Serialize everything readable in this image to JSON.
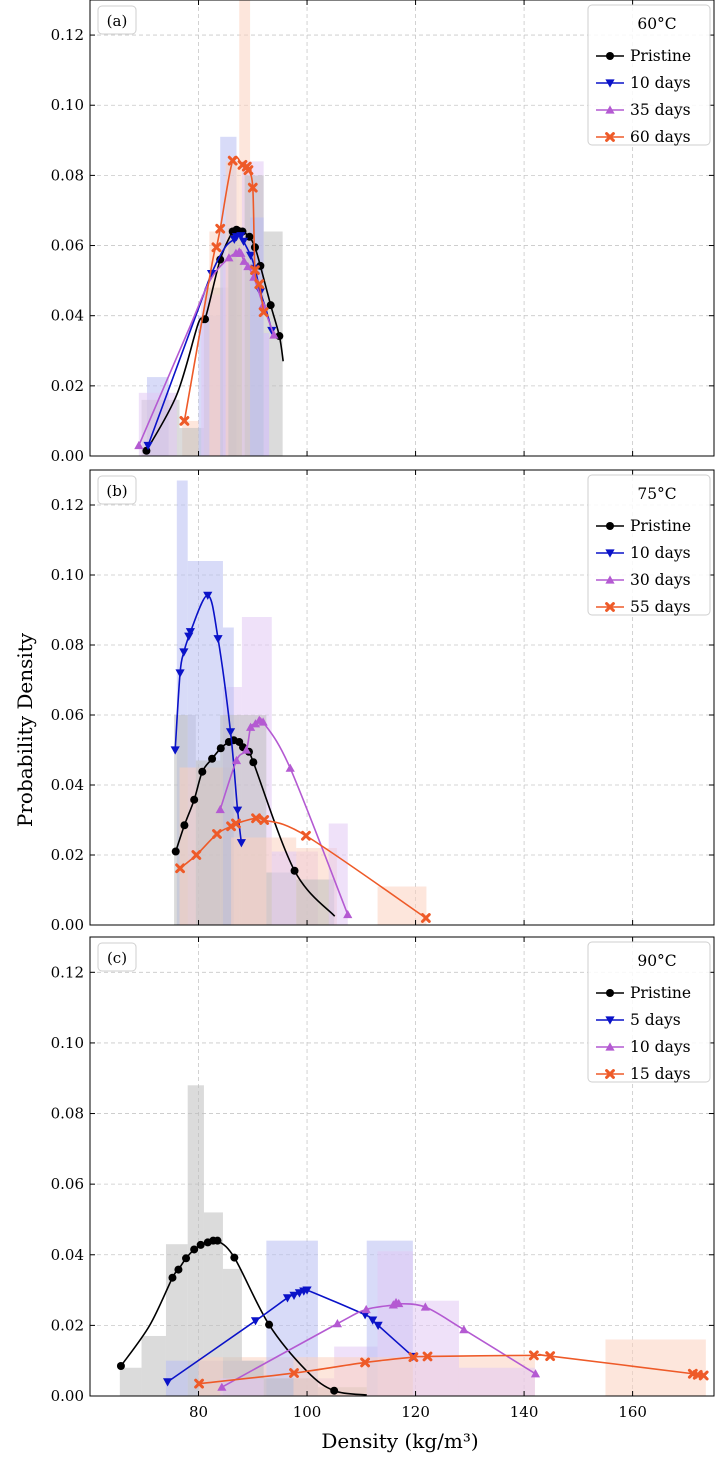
{
  "figure": {
    "xlabel": "Density (kg/m³)",
    "ylabel": "Probability Density"
  },
  "colors": {
    "Pristine": "#000000",
    "10 days": "#0a12c8",
    "5 days": "#0a12c8",
    "30 days": "#b45ad2",
    "35 days": "#b45ad2",
    "10 days (90°C)": "#b45ad2",
    "60 days": "#ee5a28",
    "55 days": "#ee5a28",
    "15 days": "#ee5a28",
    "hist_pristine": "#bdbdbd",
    "hist_blue": "#b8bef2",
    "hist_purple": "#e2c8f4",
    "hist_orange": "#fbd2c0",
    "grid": "#c8c8c8"
  },
  "chart_data": [
    {
      "type": "line",
      "panel_label": "(a)",
      "legend_title": "60°C",
      "legend_position": "top-right",
      "grid": true,
      "xlim": [
        60,
        175
      ],
      "ylim": [
        0,
        0.13
      ],
      "xticks": [
        80,
        100,
        120,
        140,
        160
      ],
      "yticks": [
        0.0,
        0.02,
        0.04,
        0.06,
        0.08,
        0.1,
        0.12
      ],
      "show_xtick_labels": false,
      "series": [
        {
          "name": "Pristine",
          "marker": "circle",
          "x": [
            70.4,
            76.0,
            80.0,
            81.2,
            84.0,
            86.3,
            87.0,
            87.6,
            88.1,
            89.4,
            90.4,
            91.4,
            93.3,
            94.9,
            95.6
          ],
          "y": [
            0.0015,
            0.0175,
            0.038,
            0.039,
            0.056,
            0.064,
            0.0645,
            0.065,
            0.064,
            0.0625,
            0.0595,
            0.0542,
            0.043,
            0.0342,
            0.027
          ],
          "marker_idx": [
            0,
            3,
            4,
            5,
            6,
            8,
            9,
            10,
            11,
            12,
            13
          ]
        },
        {
          "name": "10 days",
          "marker": "triangle-down",
          "x": [
            70.7,
            79.5,
            82.4,
            84.9,
            86.6,
            87.0,
            87.8,
            88.3,
            89.6,
            90.4,
            91.4,
            92.4,
            93.5
          ],
          "y": [
            0.003,
            0.04,
            0.052,
            0.0595,
            0.0618,
            0.0625,
            0.0628,
            0.0612,
            0.0572,
            0.0535,
            0.0468,
            0.042,
            0.0358
          ],
          "marker_idx": [
            0,
            2,
            4,
            5,
            6,
            7,
            8,
            9,
            10,
            12
          ]
        },
        {
          "name": "35 days",
          "marker": "triangle-up",
          "x": [
            69.0,
            77.9,
            82.1,
            85.6,
            86.9,
            87.5,
            87.8,
            88.4,
            89.1,
            90.2,
            91.9,
            93.9
          ],
          "y": [
            0.003,
            0.035,
            0.05,
            0.0565,
            0.0578,
            0.0582,
            0.0578,
            0.0555,
            0.054,
            0.051,
            0.043,
            0.0345
          ],
          "marker_idx": [
            0,
            3,
            4,
            5,
            6,
            7,
            8,
            9,
            10,
            11
          ]
        },
        {
          "name": "60 days",
          "marker": "x",
          "x": [
            77.4,
            82.4,
            83.3,
            84.0,
            86.3,
            88.1,
            88.9,
            89.2,
            90.0,
            90.4,
            91.2,
            92.0
          ],
          "y": [
            0.01,
            0.054,
            0.0595,
            0.0648,
            0.0842,
            0.083,
            0.0825,
            0.0815,
            0.0765,
            0.053,
            0.049,
            0.041
          ],
          "marker_idx": [
            0,
            2,
            3,
            4,
            5,
            6,
            7,
            8,
            9,
            10,
            11
          ]
        }
      ]
    },
    {
      "type": "line",
      "panel_label": "(b)",
      "legend_title": "75°C",
      "legend_position": "top-right",
      "grid": true,
      "xlim": [
        60,
        175
      ],
      "ylim": [
        0,
        0.13
      ],
      "xticks": [
        80,
        100,
        120,
        140,
        160
      ],
      "yticks": [
        0.0,
        0.02,
        0.04,
        0.06,
        0.08,
        0.1,
        0.12
      ],
      "show_xtick_labels": false,
      "series": [
        {
          "name": "Pristine",
          "marker": "circle",
          "x": [
            75.8,
            77.4,
            79.2,
            80.7,
            82.5,
            84.1,
            85.6,
            86.5,
            87.5,
            88.2,
            89.3,
            90.1,
            97.7,
            105.1
          ],
          "y": [
            0.021,
            0.0285,
            0.0358,
            0.0438,
            0.0475,
            0.0505,
            0.0523,
            0.0528,
            0.0523,
            0.0508,
            0.0495,
            0.0465,
            0.0155,
            0.0025
          ],
          "marker_idx": [
            0,
            1,
            2,
            3,
            4,
            5,
            6,
            7,
            8,
            9,
            10,
            11,
            12
          ]
        },
        {
          "name": "10 days",
          "marker": "triangle-down",
          "x": [
            75.7,
            76.6,
            77.3,
            78.2,
            78.5,
            81.7,
            83.6,
            85.9,
            87.2,
            87.9
          ],
          "y": [
            0.05,
            0.072,
            0.078,
            0.0825,
            0.0838,
            0.0942,
            0.0818,
            0.0552,
            0.0328,
            0.0235
          ],
          "marker_idx": [
            0,
            1,
            2,
            3,
            4,
            5,
            6,
            7,
            8,
            9
          ]
        },
        {
          "name": "30 days",
          "marker": "triangle-up",
          "x": [
            84.0,
            87.0,
            88.8,
            89.6,
            90.5,
            91.2,
            91.9,
            96.9,
            107.5
          ],
          "y": [
            0.033,
            0.047,
            0.05,
            0.0565,
            0.0575,
            0.0585,
            0.058,
            0.0448,
            0.003
          ],
          "marker_idx": [
            0,
            1,
            2,
            3,
            4,
            5,
            6,
            7,
            8
          ]
        },
        {
          "name": "55 days",
          "marker": "x",
          "x": [
            76.6,
            79.6,
            83.4,
            86.0,
            86.9,
            90.6,
            92.1,
            99.8,
            121.9
          ],
          "y": [
            0.0162,
            0.02,
            0.026,
            0.0282,
            0.029,
            0.0305,
            0.03,
            0.0255,
            0.002
          ],
          "marker_idx": [
            0,
            1,
            2,
            3,
            4,
            5,
            6,
            7,
            8
          ]
        }
      ]
    },
    {
      "type": "line",
      "panel_label": "(c)",
      "legend_title": "90°C",
      "legend_position": "top-right",
      "grid": true,
      "xlim": [
        60,
        175
      ],
      "ylim": [
        0,
        0.13
      ],
      "xticks": [
        80,
        100,
        120,
        140,
        160
      ],
      "yticks": [
        0.0,
        0.02,
        0.04,
        0.06,
        0.08,
        0.1,
        0.12
      ],
      "show_xtick_labels": true,
      "series": [
        {
          "name": "Pristine",
          "marker": "circle",
          "x": [
            65.7,
            71.0,
            75.2,
            76.3,
            77.7,
            79.2,
            80.4,
            81.7,
            82.7,
            83.5,
            86.6,
            93.0,
            100.0,
            105.0,
            111.0
          ],
          "y": [
            0.0085,
            0.02,
            0.0335,
            0.0358,
            0.039,
            0.0415,
            0.0428,
            0.0435,
            0.044,
            0.044,
            0.0392,
            0.0202,
            0.007,
            0.0015,
            0.0003
          ],
          "marker_idx": [
            0,
            2,
            3,
            4,
            5,
            6,
            7,
            8,
            9,
            10,
            11,
            13
          ]
        },
        {
          "name": "5 days",
          "marker": "triangle-down",
          "x": [
            74.3,
            90.5,
            96.4,
            97.6,
            98.6,
            99.4,
            100.0,
            110.7,
            112.1,
            113.1,
            119.5
          ],
          "y": [
            0.004,
            0.0213,
            0.0278,
            0.0285,
            0.0292,
            0.0297,
            0.03,
            0.023,
            0.0215,
            0.02,
            0.0112
          ],
          "marker_idx": [
            0,
            1,
            2,
            3,
            4,
            5,
            6,
            7,
            8,
            9,
            10
          ]
        },
        {
          "name": "10 days",
          "marker": "triangle-up",
          "x": [
            84.3,
            105.6,
            110.9,
            115.9,
            116.4,
            116.9,
            121.8,
            128.9,
            142.1
          ],
          "y": [
            0.0025,
            0.0205,
            0.0245,
            0.0258,
            0.0265,
            0.0262,
            0.0252,
            0.0188,
            0.0063
          ],
          "marker_idx": [
            0,
            1,
            2,
            3,
            4,
            5,
            6,
            7,
            8
          ]
        },
        {
          "name": "15 days",
          "marker": "x",
          "x": [
            80.1,
            97.6,
            110.7,
            119.6,
            122.2,
            141.8,
            144.8,
            171.1,
            172.0,
            173.1
          ],
          "y": [
            0.0035,
            0.0065,
            0.0095,
            0.011,
            0.0112,
            0.0115,
            0.0113,
            0.0063,
            0.006,
            0.0058
          ],
          "marker_idx": [
            0,
            1,
            2,
            3,
            4,
            5,
            6,
            7,
            8,
            9
          ]
        }
      ]
    }
  ]
}
